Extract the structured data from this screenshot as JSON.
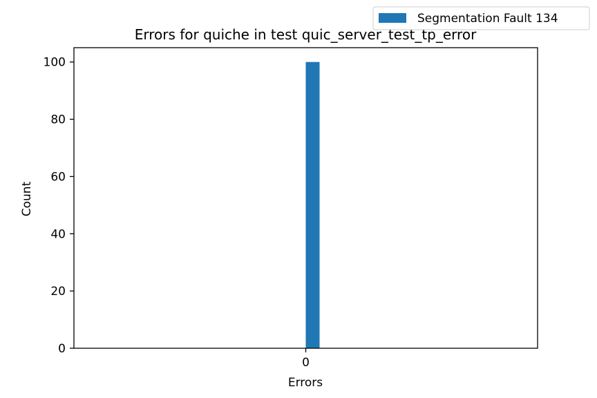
{
  "chart_data": {
    "type": "bar",
    "title": "Errors for quiche in test quic_server_test_tp_error",
    "xlabel": "Errors",
    "ylabel": "Count",
    "categories": [
      "0"
    ],
    "series": [
      {
        "name": "Segmentation Fault 134",
        "values": [
          100
        ],
        "color": "#1f77b4"
      }
    ],
    "ylim": [
      0,
      105
    ],
    "yticks": [
      0,
      20,
      40,
      60,
      80,
      100
    ],
    "xticks": [
      "0"
    ],
    "grid": false,
    "legend_placement": "top-right"
  }
}
